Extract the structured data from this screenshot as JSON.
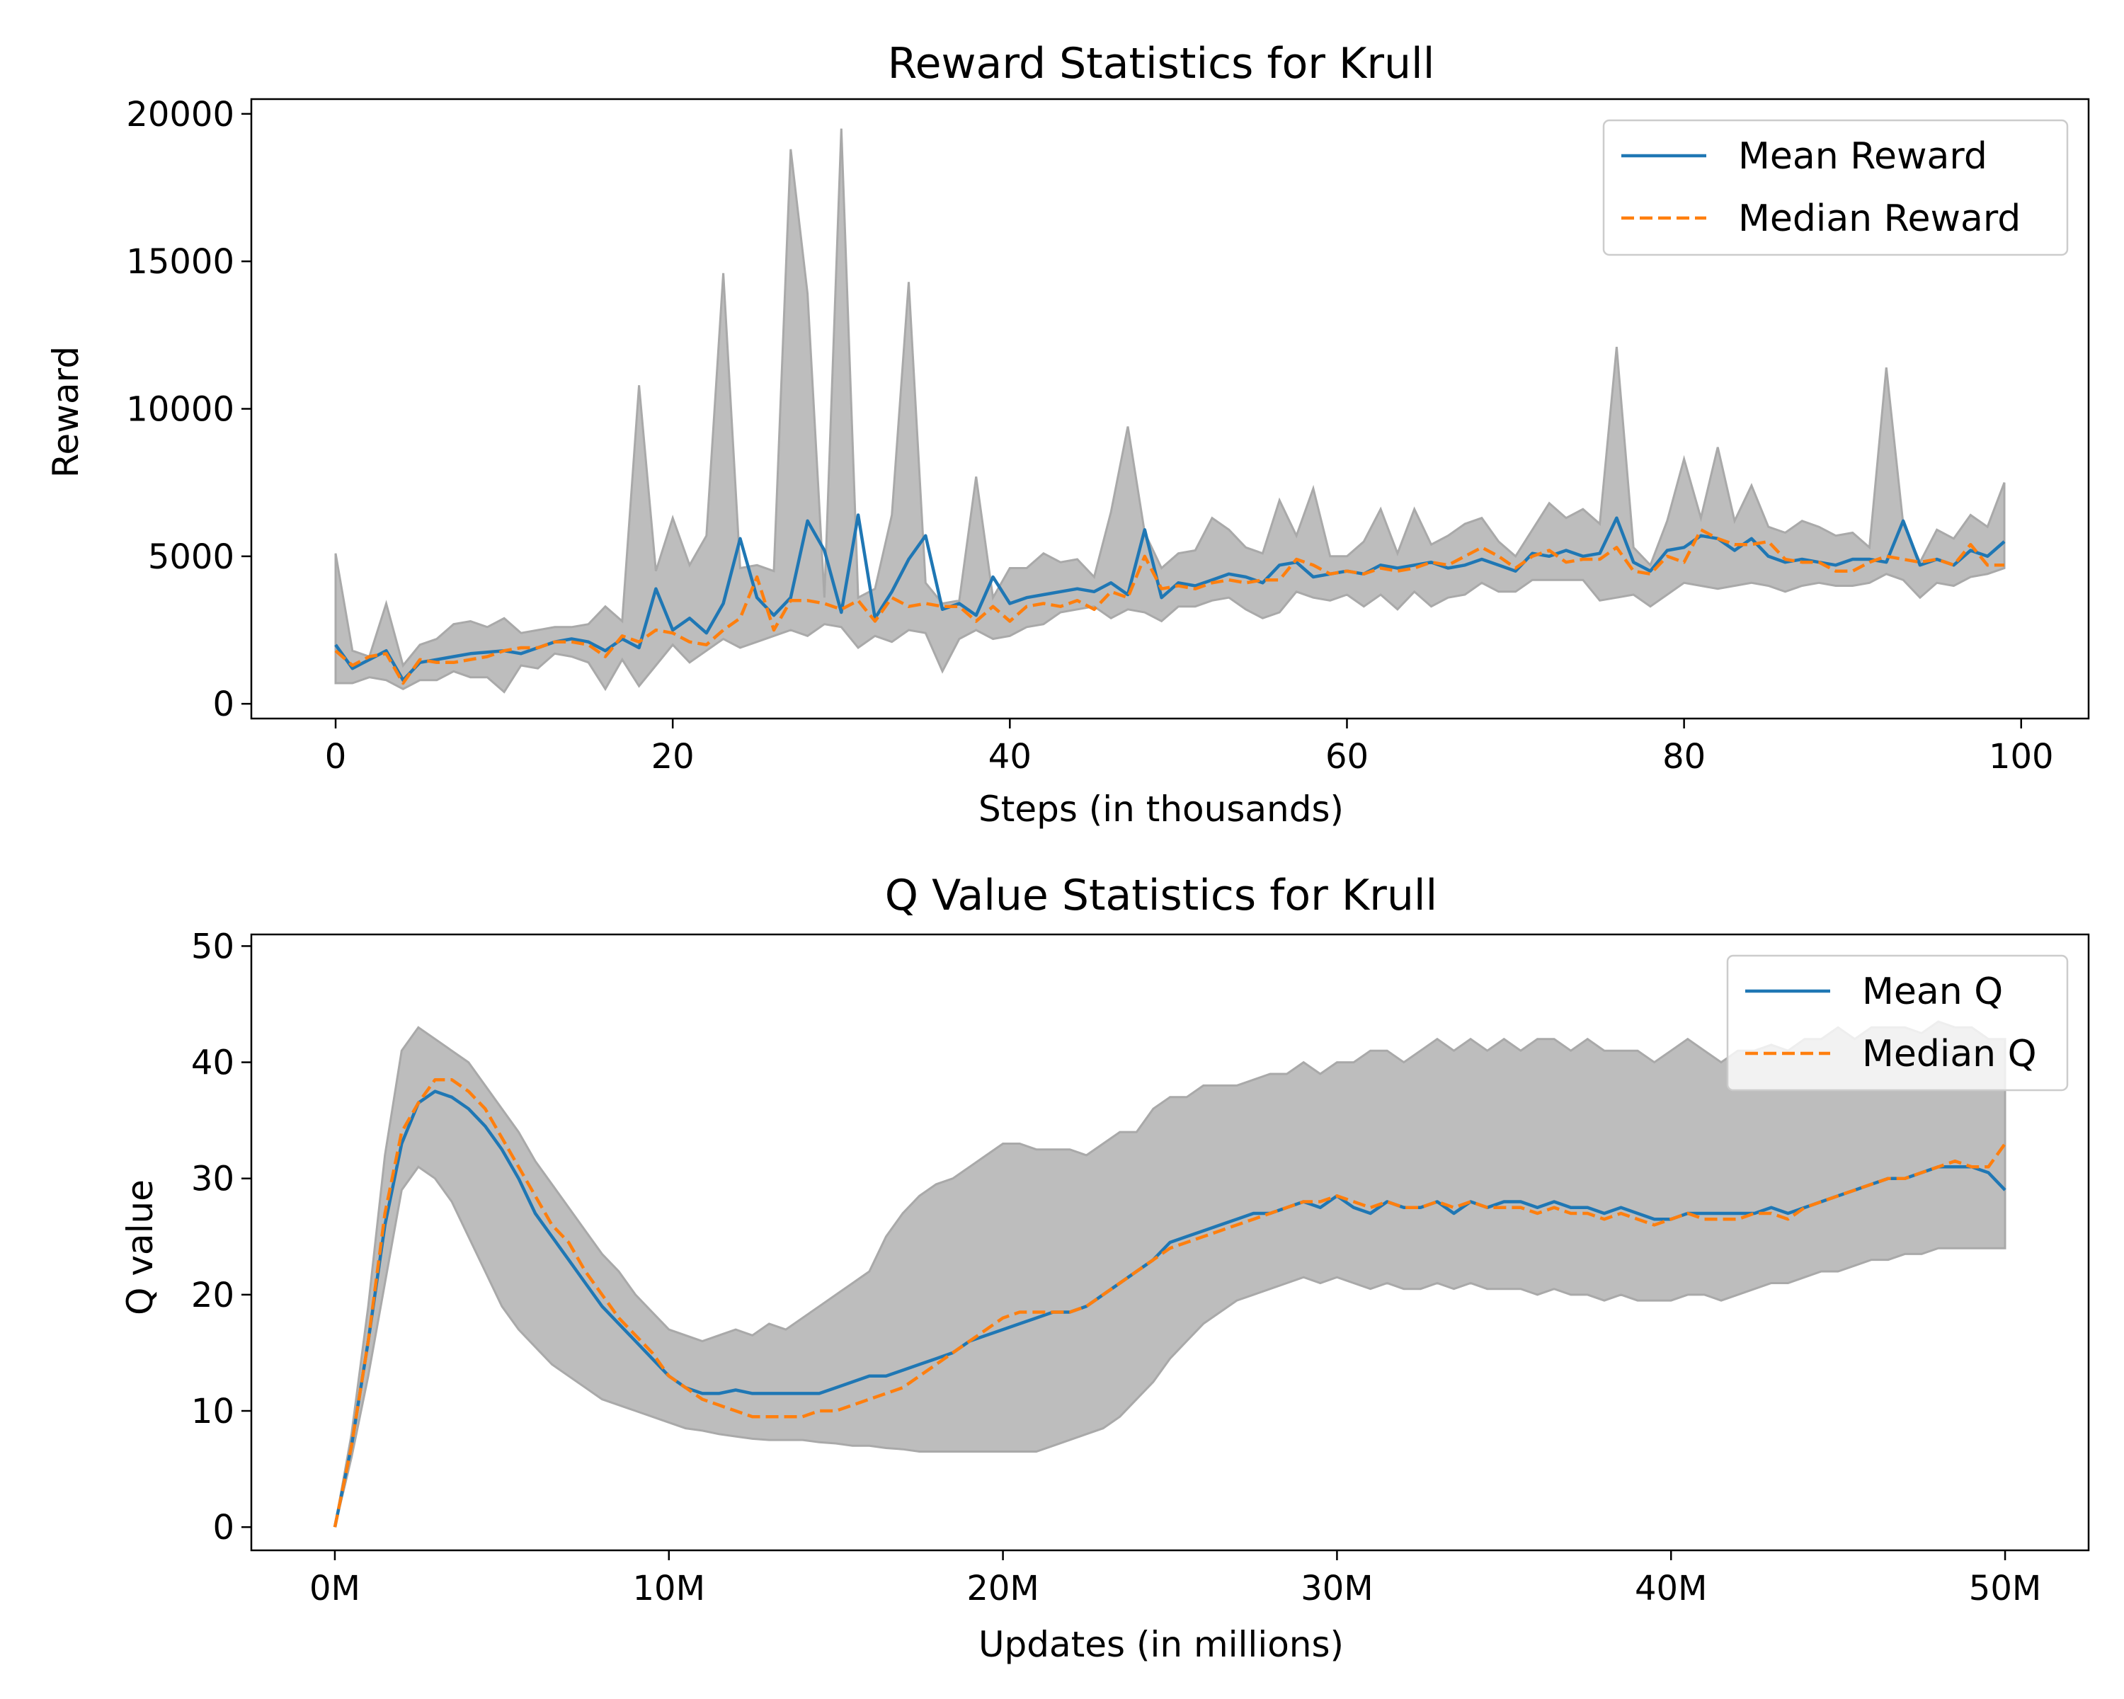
{
  "colors": {
    "mean": "#1f77b4",
    "median": "#ff7f0e",
    "band": "#a9a9a9",
    "band_fill": "#bdbdbd"
  },
  "chart_data": [
    {
      "type": "line",
      "title": "Reward Statistics for Krull",
      "xlabel": "Steps (in thousands)",
      "ylabel": "Reward",
      "xlim": [
        -5,
        104
      ],
      "ylim": [
        -500,
        20500
      ],
      "xticks": [
        0,
        20,
        40,
        60,
        80,
        100
      ],
      "xtick_labels": [
        "0",
        "20",
        "40",
        "60",
        "80",
        "100"
      ],
      "yticks": [
        0,
        5000,
        10000,
        15000,
        20000
      ],
      "ytick_labels": [
        "0",
        "5000",
        "10000",
        "15000",
        "20000"
      ],
      "legend_position": "upper right",
      "x": [
        0,
        1,
        2,
        3,
        4,
        5,
        6,
        7,
        8,
        9,
        10,
        11,
        12,
        13,
        14,
        15,
        16,
        17,
        18,
        19,
        20,
        21,
        22,
        23,
        24,
        25,
        26,
        27,
        28,
        29,
        30,
        31,
        32,
        33,
        34,
        35,
        36,
        37,
        38,
        39,
        40,
        41,
        42,
        43,
        44,
        45,
        46,
        47,
        48,
        49,
        50,
        51,
        52,
        53,
        54,
        55,
        56,
        57,
        58,
        59,
        60,
        61,
        62,
        63,
        64,
        65,
        66,
        67,
        68,
        69,
        70,
        71,
        72,
        73,
        74,
        75,
        76,
        77,
        78,
        79,
        80,
        81,
        82,
        83,
        84,
        85,
        86,
        87,
        88,
        89,
        90,
        91,
        92,
        93,
        94,
        95,
        96,
        97,
        98,
        99
      ],
      "series": [
        {
          "name": "Mean Reward",
          "style": "solid",
          "values": [
            2000,
            1200,
            1500,
            1800,
            800,
            1400,
            1500,
            1600,
            1700,
            1750,
            1800,
            1700,
            1900,
            2100,
            2200,
            2100,
            1800,
            2200,
            1900,
            3900,
            2500,
            2900,
            2400,
            3400,
            5600,
            3600,
            3000,
            3600,
            6200,
            5200,
            3100,
            6400,
            2900,
            3800,
            4900,
            5700,
            3200,
            3400,
            3000,
            4300,
            3400,
            3600,
            3700,
            3800,
            3900,
            3800,
            4100,
            3700,
            5900,
            3600,
            4100,
            4000,
            4200,
            4400,
            4300,
            4100,
            4700,
            4800,
            4300,
            4400,
            4500,
            4400,
            4700,
            4600,
            4700,
            4800,
            4600,
            4700,
            4900,
            4700,
            4500,
            5100,
            5000,
            5200,
            5000,
            5100,
            6300,
            4800,
            4500,
            5200,
            5300,
            5700,
            5600,
            5200,
            5600,
            5000,
            4800,
            4900,
            4800,
            4700,
            4900,
            4900,
            4800,
            6200,
            4700,
            4900,
            4700,
            5200,
            5000,
            5500
          ]
        },
        {
          "name": "Median Reward",
          "style": "dashed",
          "values": [
            1800,
            1300,
            1600,
            1700,
            700,
            1500,
            1400,
            1400,
            1500,
            1600,
            1800,
            1900,
            1900,
            2100,
            2100,
            2000,
            1600,
            2300,
            2100,
            2500,
            2400,
            2100,
            2000,
            2500,
            2900,
            4300,
            2500,
            3500,
            3500,
            3400,
            3200,
            3500,
            2800,
            3600,
            3300,
            3400,
            3300,
            3300,
            2800,
            3300,
            2800,
            3300,
            3400,
            3300,
            3500,
            3200,
            3800,
            3600,
            5000,
            3900,
            4000,
            3900,
            4100,
            4200,
            4100,
            4200,
            4200,
            4900,
            4700,
            4400,
            4500,
            4400,
            4600,
            4500,
            4600,
            4800,
            4700,
            5000,
            5300,
            5000,
            4600,
            5000,
            5200,
            4800,
            4900,
            4900,
            5300,
            4500,
            4400,
            5000,
            4800,
            5900,
            5600,
            5400,
            5400,
            5500,
            4900,
            4800,
            4800,
            4500,
            4500,
            4800,
            5000,
            4900,
            4800,
            4900,
            4700,
            5400,
            4700,
            4700
          ]
        },
        {
          "name": "Max",
          "style": "band-upper",
          "values": [
            5100,
            1800,
            1600,
            3400,
            1300,
            2000,
            2200,
            2700,
            2800,
            2600,
            2900,
            2400,
            2500,
            2600,
            2600,
            2700,
            3300,
            2800,
            10800,
            4500,
            6300,
            4700,
            5700,
            14600,
            4600,
            4700,
            4500,
            18800,
            13900,
            3600,
            19500,
            3600,
            3900,
            6400,
            14300,
            4100,
            3400,
            3500,
            7700,
            3600,
            4600,
            4600,
            5100,
            4800,
            4900,
            4300,
            6500,
            9400,
            5800,
            4600,
            5100,
            5200,
            6300,
            5900,
            5300,
            5100,
            6900,
            5700,
            7300,
            5000,
            5000,
            5500,
            6600,
            5100,
            6600,
            5400,
            5700,
            6100,
            6300,
            5500,
            5000,
            5900,
            6800,
            6300,
            6600,
            6100,
            12100,
            5300,
            4700,
            6200,
            8300,
            6300,
            8700,
            6200,
            7400,
            6000,
            5800,
            6200,
            6000,
            5700,
            5800,
            5300,
            11400,
            6100,
            4800,
            5900,
            5600,
            6400,
            6000,
            7500
          ]
        },
        {
          "name": "Min",
          "style": "band-lower",
          "values": [
            700,
            700,
            900,
            800,
            500,
            800,
            800,
            1100,
            900,
            900,
            400,
            1300,
            1200,
            1700,
            1600,
            1400,
            500,
            1500,
            600,
            1300,
            2000,
            1400,
            1800,
            2200,
            1900,
            2100,
            2300,
            2500,
            2300,
            2700,
            2600,
            1900,
            2300,
            2100,
            2500,
            2400,
            1100,
            2200,
            2500,
            2200,
            2300,
            2600,
            2700,
            3100,
            3200,
            3300,
            2900,
            3200,
            3100,
            2800,
            3300,
            3300,
            3500,
            3600,
            3200,
            2900,
            3100,
            3800,
            3600,
            3500,
            3700,
            3300,
            3700,
            3200,
            3800,
            3300,
            3600,
            3700,
            4100,
            3800,
            3800,
            4200,
            4200,
            4200,
            4200,
            3500,
            3600,
            3700,
            3300,
            3700,
            4100,
            4000,
            3900,
            4000,
            4100,
            4000,
            3800,
            4000,
            4100,
            4000,
            4000,
            4100,
            4400,
            4200,
            3600,
            4100,
            4000,
            4300,
            4400,
            4600
          ]
        }
      ]
    },
    {
      "type": "line",
      "title": "Q Value Statistics for Krull",
      "xlabel": "Updates (in millions)",
      "ylabel": "Q value",
      "xlim": [
        -2.5,
        52.5
      ],
      "ylim": [
        -2,
        51
      ],
      "xticks": [
        0,
        10,
        20,
        30,
        40,
        50
      ],
      "xtick_labels": [
        "0M",
        "10M",
        "20M",
        "30M",
        "40M",
        "50M"
      ],
      "yticks": [
        0,
        10,
        20,
        30,
        40,
        50
      ],
      "ytick_labels": [
        "0",
        "10",
        "20",
        "30",
        "40",
        "50"
      ],
      "legend_position": "upper right",
      "x": [
        0,
        0.5,
        1,
        1.5,
        2,
        2.5,
        3,
        3.5,
        4,
        4.5,
        5,
        5.5,
        6,
        6.5,
        7,
        7.5,
        8,
        8.5,
        9,
        9.5,
        10,
        10.5,
        11,
        11.5,
        12,
        12.5,
        13,
        13.5,
        14,
        14.5,
        15,
        15.5,
        16,
        16.5,
        17,
        17.5,
        18,
        18.5,
        19,
        19.5,
        20,
        20.5,
        21,
        21.5,
        22,
        22.5,
        23,
        23.5,
        24,
        24.5,
        25,
        25.5,
        26,
        26.5,
        27,
        27.5,
        28,
        28.5,
        29,
        29.5,
        30,
        30.5,
        31,
        31.5,
        32,
        32.5,
        33,
        33.5,
        34,
        34.5,
        35,
        35.5,
        36,
        36.5,
        37,
        37.5,
        38,
        38.5,
        39,
        39.5,
        40,
        40.5,
        41,
        41.5,
        42,
        42.5,
        43,
        43.5,
        44,
        44.5,
        45,
        45.5,
        46,
        46.5,
        47,
        47.5,
        48,
        48.5,
        49,
        49.5,
        50
      ],
      "series": [
        {
          "name": "Mean Q",
          "style": "solid",
          "values": [
            0,
            7,
            16,
            26,
            33,
            36.5,
            37.5,
            37,
            36,
            34.5,
            32.5,
            30,
            27,
            25,
            23,
            21,
            19,
            17.5,
            16,
            14.5,
            13,
            12,
            11.5,
            11.5,
            11.8,
            11.5,
            11.5,
            11.5,
            11.5,
            11.5,
            12,
            12.5,
            13,
            13,
            13.5,
            14,
            14.5,
            15,
            16,
            16.5,
            17,
            17.5,
            18,
            18.5,
            18.5,
            19,
            20,
            21,
            22,
            23,
            24.5,
            25,
            25.5,
            26,
            26.5,
            27,
            27,
            27.5,
            28,
            27.5,
            28.5,
            27.5,
            27,
            28,
            27.5,
            27.5,
            28,
            27,
            28,
            27.5,
            28,
            28,
            27.5,
            28,
            27.5,
            27.5,
            27,
            27.5,
            27,
            26.5,
            26.5,
            27,
            27,
            27,
            27,
            27,
            27.5,
            27,
            27.5,
            28,
            28.5,
            29,
            29.5,
            30,
            30,
            30.5,
            31,
            31,
            31,
            30.5,
            29
          ]
        },
        {
          "name": "Median Q",
          "style": "dashed",
          "values": [
            0,
            7,
            16,
            27,
            34,
            36.5,
            38.5,
            38.5,
            37.5,
            36,
            33.5,
            31,
            28.5,
            26,
            24.5,
            22,
            20,
            18,
            16.5,
            15,
            13,
            12,
            11,
            10.5,
            10,
            9.5,
            9.5,
            9.5,
            9.5,
            10,
            10,
            10.5,
            11,
            11.5,
            12,
            13,
            14,
            15,
            16,
            17,
            18,
            18.5,
            18.5,
            18.5,
            18.5,
            19,
            20,
            21,
            22,
            23,
            24,
            24.5,
            25,
            25.5,
            26,
            26.5,
            27,
            27.5,
            28,
            28,
            28.5,
            28,
            27.5,
            28,
            27.5,
            27.5,
            28,
            27.5,
            28,
            27.5,
            27.5,
            27.5,
            27,
            27.5,
            27,
            27,
            26.5,
            27,
            26.5,
            26,
            26.5,
            27,
            26.5,
            26.5,
            26.5,
            27,
            27,
            26.5,
            27.5,
            28,
            28.5,
            29,
            29.5,
            30,
            30,
            30.5,
            31,
            31.5,
            31,
            31,
            33
          ]
        },
        {
          "name": "Max",
          "style": "band-upper",
          "values": [
            0,
            8,
            19,
            32,
            41,
            43,
            42,
            41,
            40,
            38,
            36,
            34,
            31.5,
            29.5,
            27.5,
            25.5,
            23.5,
            22,
            20,
            18.5,
            17,
            16.5,
            16,
            16.5,
            17,
            16.5,
            17.5,
            17,
            18,
            19,
            20,
            21,
            22,
            25,
            27,
            28.5,
            29.5,
            30,
            31,
            32,
            33,
            33,
            32.5,
            32.5,
            32.5,
            32,
            33,
            34,
            34,
            36,
            37,
            37,
            38,
            38,
            38,
            38.5,
            39,
            39,
            40,
            39,
            40,
            40,
            41,
            41,
            40,
            41,
            42,
            41,
            42,
            41,
            42,
            41,
            42,
            42,
            41,
            42,
            41,
            41,
            41,
            40,
            41,
            42,
            41,
            40,
            41,
            41,
            41.5,
            41,
            42,
            42,
            43,
            42,
            43,
            43,
            43,
            42.5,
            43.5,
            43,
            43,
            42,
            42
          ]
        },
        {
          "name": "Min",
          "style": "band-lower",
          "values": [
            0,
            6,
            13,
            21,
            29,
            31,
            30,
            28,
            25,
            22,
            19,
            17,
            15.5,
            14,
            13,
            12,
            11,
            10.5,
            10,
            9.5,
            9,
            8.5,
            8.3,
            8,
            7.8,
            7.6,
            7.5,
            7.5,
            7.5,
            7.3,
            7.2,
            7,
            7,
            6.8,
            6.7,
            6.5,
            6.5,
            6.5,
            6.5,
            6.5,
            6.5,
            6.5,
            6.5,
            7,
            7.5,
            8,
            8.5,
            9.5,
            11,
            12.5,
            14.5,
            16,
            17.5,
            18.5,
            19.5,
            20,
            20.5,
            21,
            21.5,
            21,
            21.5,
            21,
            20.5,
            21,
            20.5,
            20.5,
            21,
            20.5,
            21,
            20.5,
            20.5,
            20.5,
            20,
            20.5,
            20,
            20,
            19.5,
            20,
            19.5,
            19.5,
            19.5,
            20,
            20,
            19.5,
            20,
            20.5,
            21,
            21,
            21.5,
            22,
            22,
            22.5,
            23,
            23,
            23.5,
            23.5,
            24,
            24,
            24,
            24,
            24
          ]
        }
      ]
    }
  ]
}
